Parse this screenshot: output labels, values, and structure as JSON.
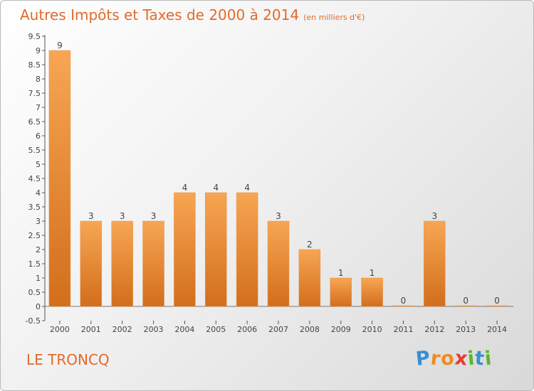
{
  "title": "Autres Impôts et Taxes de 2000 à 2014",
  "subtitle": "(en milliers d'€)",
  "place": "LE TRONCQ",
  "logo": {
    "text": "Proxiti",
    "letters": [
      {
        "ch": "P",
        "color": "#3a8fd3"
      },
      {
        "ch": "r",
        "color": "#f08a24"
      },
      {
        "ch": "o",
        "color": "#f08a24"
      },
      {
        "ch": "x",
        "color": "#e83a2e"
      },
      {
        "ch": "i",
        "color": "#5cb531"
      },
      {
        "ch": "t",
        "color": "#3a8fd3"
      },
      {
        "ch": "i",
        "color": "#5cb531"
      }
    ]
  },
  "colors": {
    "bar_top": "#f7a653",
    "bar_bottom": "#d26e1c",
    "accent": "#e26a2a"
  },
  "chart_data": {
    "type": "bar",
    "categories": [
      "2000",
      "2001",
      "2002",
      "2003",
      "2004",
      "2005",
      "2006",
      "2007",
      "2008",
      "2009",
      "2010",
      "2011",
      "2012",
      "2013",
      "2014"
    ],
    "values": [
      9,
      3,
      3,
      3,
      4,
      4,
      4,
      3,
      2,
      1,
      1,
      0,
      3,
      0,
      0
    ],
    "data_labels": [
      "9",
      "3",
      "3",
      "3",
      "4",
      "4",
      "4",
      "3",
      "2",
      "1",
      "1",
      "0",
      "3",
      "0",
      "0"
    ],
    "yticks": [
      "-0.5",
      "0",
      "0.5",
      "1",
      "1.5",
      "2",
      "2.5",
      "3",
      "3.5",
      "4",
      "4.5",
      "5",
      "5.5",
      "6",
      "6.5",
      "7",
      "7.5",
      "8",
      "8.5",
      "9",
      "9.5"
    ],
    "ylim": [
      -0.5,
      9.5
    ],
    "grid": false
  }
}
